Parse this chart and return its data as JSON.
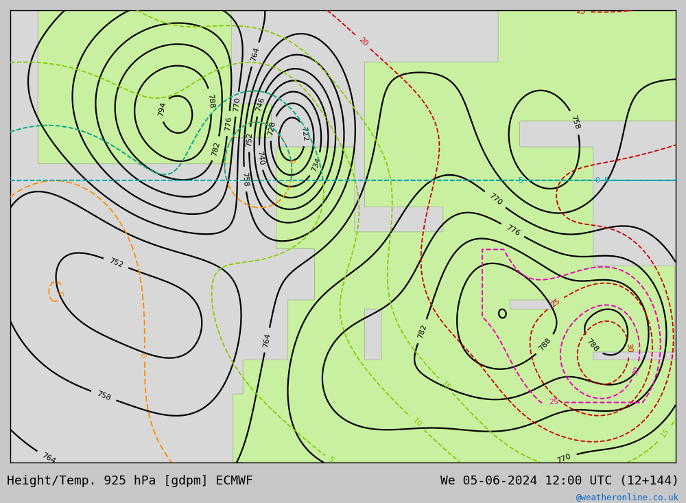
{
  "title_left": "Height/Temp. 925 hPa [gdpm] ECMWF",
  "title_right": "We 05-06-2024 12:00 UTC (12+144)",
  "watermark": "@weatheronline.co.uk",
  "title_fontsize": 13,
  "watermark_fontsize": 9,
  "watermark_color": "#0066cc",
  "title_color": "#000000",
  "land_color": "#c8f0a0",
  "sea_color": "#d8d8d8",
  "fig_width": 10.0,
  "fig_height": 7.33
}
